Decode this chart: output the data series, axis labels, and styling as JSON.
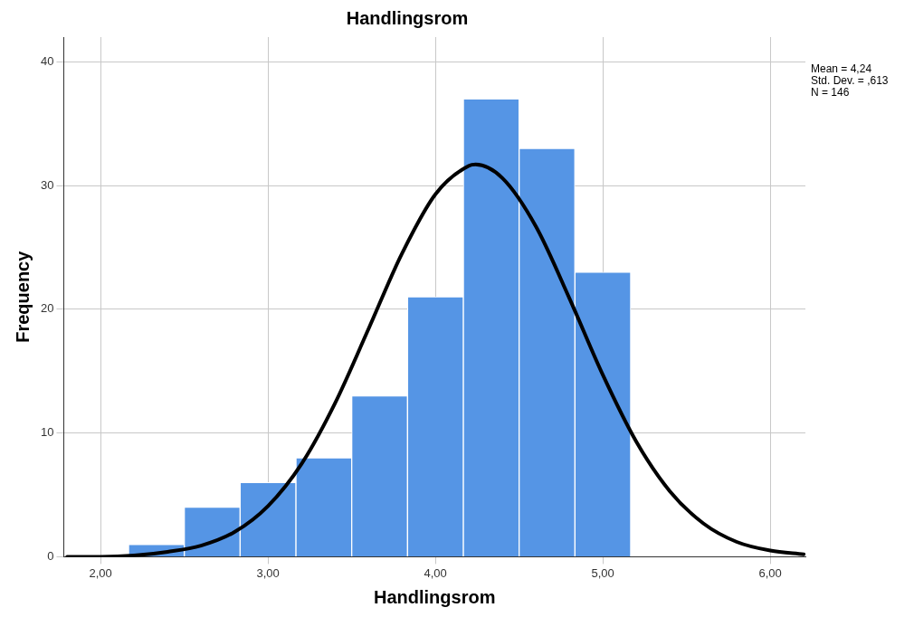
{
  "chart_data": {
    "type": "histogram",
    "title": "Handlingsrom",
    "xlabel": "Handlingsrom",
    "ylabel": "Frequency",
    "bins": [
      2.167,
      2.5,
      2.833,
      3.167,
      3.5,
      3.833,
      4.167,
      4.5,
      4.833,
      5.167
    ],
    "values": [
      1,
      4,
      6,
      8,
      13,
      21,
      37,
      33,
      23
    ],
    "color": "#5595e5",
    "series": [
      {
        "type": "line",
        "color": "#000000",
        "x": [
          1.8,
          2.0,
          2.2,
          2.4,
          2.6,
          2.8,
          3.0,
          3.2,
          3.4,
          3.6,
          3.8,
          4.0,
          4.2,
          4.24,
          4.4,
          4.6,
          4.8,
          5.0,
          5.2,
          5.4,
          5.6,
          5.8,
          6.0,
          6.2
        ],
        "values": [
          0.0,
          0.0,
          0.1,
          0.4,
          0.9,
          2.0,
          4.1,
          7.5,
          12.4,
          18.4,
          24.5,
          29.3,
          31.6,
          31.7,
          30.6,
          26.7,
          20.9,
          14.7,
          9.3,
          5.3,
          2.7,
          1.2,
          0.5,
          0.2
        ]
      }
    ],
    "xlim": [
      1.78,
      6.21
    ],
    "xticks": [
      {
        "value": 2,
        "label": "2,00"
      },
      {
        "value": 3,
        "label": "3,00"
      },
      {
        "value": 4,
        "label": "4,00"
      },
      {
        "value": 5,
        "label": "5,00"
      },
      {
        "value": 6,
        "label": "6,00"
      }
    ],
    "ylim": [
      0,
      42
    ],
    "yticks": [
      0,
      10,
      20,
      30,
      40
    ],
    "grid": true,
    "legend": false,
    "marker": "none",
    "line_style": "solid",
    "annotations": [
      "Mean = 4,24",
      "Std. Dev. = ,613",
      "N = 146"
    ]
  }
}
